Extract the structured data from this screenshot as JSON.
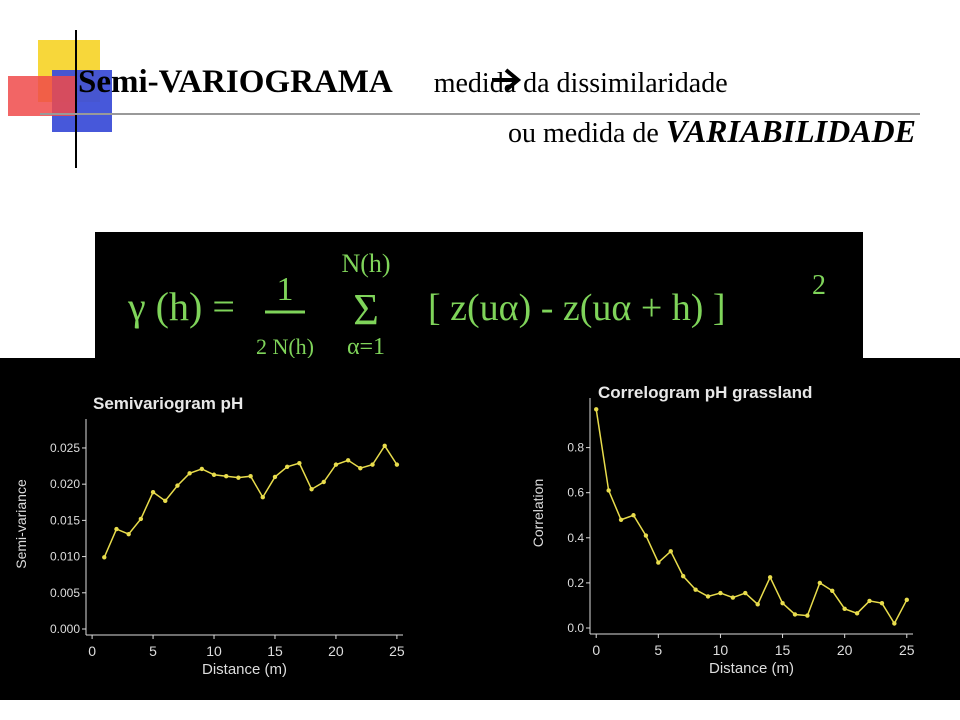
{
  "header": {
    "title_bold": "Semi-VARIOGRAMA",
    "title_rest": " medida da dissimilaridade",
    "line2_plain": "ou medida de ",
    "line2_emph": "VARIABILIDADE"
  },
  "formula": {
    "lhs": "γ (h) =",
    "numerator": "1",
    "denominator": "2 N(h)",
    "sum_top": "N(h)",
    "sum": "Σ",
    "sum_bottom": "α=1",
    "body": "[ z(uα) - z(uα + h) ]",
    "power": "2"
  },
  "chart_data": [
    {
      "type": "line",
      "title": "Semivariogram pH",
      "x_label": "Distance (m)",
      "y_label": "Semi-variance",
      "x": [
        1,
        2,
        3,
        4,
        5,
        6,
        7,
        8,
        9,
        10,
        11,
        12,
        13,
        14,
        15,
        16,
        17,
        18,
        19,
        20,
        21,
        22,
        23,
        24,
        25
      ],
      "series": [
        {
          "name": "Semivariogram pH",
          "color": "#e8dc4c",
          "values": [
            0.0099,
            0.0138,
            0.0131,
            0.0152,
            0.0189,
            0.0177,
            0.0198,
            0.0215,
            0.0221,
            0.0213,
            0.0211,
            0.0209,
            0.0211,
            0.0182,
            0.021,
            0.0224,
            0.0229,
            0.0193,
            0.0203,
            0.0227,
            0.0233,
            0.0222,
            0.0227,
            0.0253,
            0.0227
          ]
        }
      ],
      "xlim": [
        -0.5,
        25.5
      ],
      "ylim": [
        0,
        0.029
      ],
      "xticks": [
        0,
        5,
        10,
        15,
        20,
        25
      ],
      "yticks": [
        {
          "value": 0,
          "label": "0.000"
        },
        0.005,
        {
          "value": 0.01,
          "label": "0.010"
        },
        0.015,
        {
          "value": 0.02,
          "label": "0.020"
        },
        0.025
      ]
    },
    {
      "type": "line",
      "title": "Correlogram pH grassland",
      "x_label": "Distance (m)",
      "y_label": "Correlation",
      "x": [
        0,
        1,
        2,
        3,
        4,
        5,
        6,
        7,
        8,
        9,
        10,
        11,
        12,
        13,
        14,
        15,
        16,
        17,
        18,
        19,
        20,
        21,
        22,
        23,
        24,
        25
      ],
      "series": [
        {
          "name": "Correlogram pH grassland",
          "color": "#e8dc4c",
          "values": [
            0.97,
            0.61,
            0.48,
            0.5,
            0.41,
            0.29,
            0.34,
            0.23,
            0.17,
            0.14,
            0.155,
            0.135,
            0.155,
            0.105,
            0.225,
            0.11,
            0.06,
            0.055,
            0.2,
            0.165,
            0.085,
            0.065,
            0.12,
            0.11,
            0.02,
            0.125
          ]
        }
      ],
      "xlim": [
        -0.5,
        25.5
      ],
      "ylim": [
        0,
        1.02
      ],
      "xticks": [
        0,
        5,
        10,
        15,
        20,
        25
      ],
      "yticks": [
        {
          "value": 0,
          "label": "0.0"
        },
        0.2,
        0.4,
        0.6,
        0.8
      ]
    }
  ]
}
